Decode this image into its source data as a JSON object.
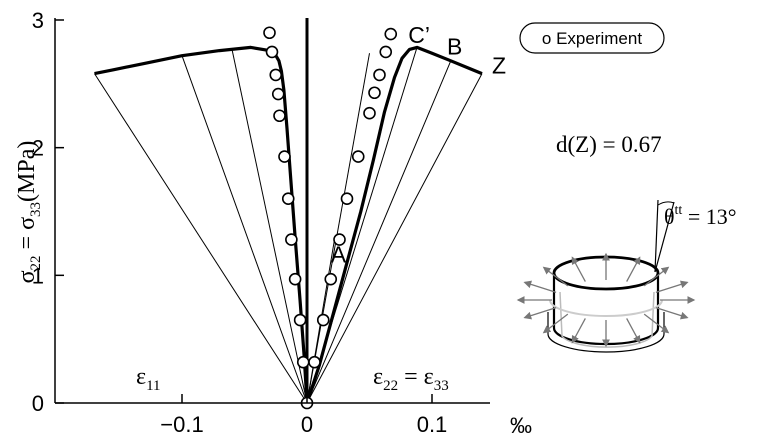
{
  "chart_data": {
    "type": "line",
    "xlim": [
      -0.19,
      0.145
    ],
    "ylim": [
      0,
      3
    ],
    "x_ticks": [
      {
        "v": -0.1,
        "label": "−0.1"
      },
      {
        "v": 0,
        "label": "0"
      },
      {
        "v": 0.1,
        "label": "0.1"
      }
    ],
    "y_ticks": [
      {
        "v": 0,
        "label": "0"
      },
      {
        "v": 1,
        "label": "1"
      },
      {
        "v": 2,
        "label": "2"
      },
      {
        "v": 3,
        "label": "3"
      }
    ],
    "x_unit": "‰",
    "y_label": {
      "sigma22": "σ",
      "sub22": "22",
      "eq": " = σ",
      "sub33": "33",
      "unit": "(MPa)"
    },
    "region_label_left": {
      "eps": "ε",
      "sub": "11"
    },
    "region_label_right": {
      "eps": "ε",
      "sub": "22",
      "eq": " = ε",
      "sub2": "33"
    },
    "series": [
      {
        "role": "model_eps11",
        "style": "thick",
        "points": [
          [
            0,
            0
          ],
          [
            -0.0022,
            0.35
          ],
          [
            -0.0055,
            0.8
          ],
          [
            -0.0095,
            1.3
          ],
          [
            -0.013,
            1.75
          ],
          [
            -0.016,
            2.15
          ],
          [
            -0.0185,
            2.45
          ],
          [
            -0.0205,
            2.6
          ],
          [
            -0.0225,
            2.68
          ],
          [
            -0.026,
            2.74
          ],
          [
            -0.03,
            2.76
          ],
          [
            -0.045,
            2.785
          ],
          [
            -0.07,
            2.76
          ],
          [
            -0.1,
            2.72
          ],
          [
            -0.13,
            2.66
          ],
          [
            -0.155,
            2.61
          ],
          [
            -0.17,
            2.58
          ]
        ]
      },
      {
        "role": "model_eps22",
        "style": "thick",
        "points": [
          [
            0,
            0
          ],
          [
            0.01,
            0.3
          ],
          [
            0.021,
            0.7
          ],
          [
            0.032,
            1.1
          ],
          [
            0.043,
            1.5
          ],
          [
            0.053,
            1.9
          ],
          [
            0.062,
            2.28
          ],
          [
            0.07,
            2.55
          ],
          [
            0.076,
            2.7
          ],
          [
            0.082,
            2.77
          ],
          [
            0.088,
            2.785
          ],
          [
            0.1,
            2.74
          ],
          [
            0.115,
            2.68
          ],
          [
            0.13,
            2.62
          ],
          [
            0.14,
            2.58
          ]
        ]
      },
      {
        "role": "unloading",
        "style": "thin",
        "points": [
          [
            0,
            0
          ],
          [
            -0.17,
            2.58
          ]
        ]
      },
      {
        "role": "unloading",
        "style": "thin",
        "points": [
          [
            0,
            0
          ],
          [
            -0.1,
            2.72
          ]
        ]
      },
      {
        "role": "unloading",
        "style": "thin",
        "points": [
          [
            0,
            0
          ],
          [
            -0.06,
            2.77
          ]
        ]
      },
      {
        "role": "unloading",
        "style": "thin",
        "points": [
          [
            0,
            0
          ],
          [
            0.14,
            2.58
          ]
        ]
      },
      {
        "role": "unloading",
        "style": "thin",
        "points": [
          [
            0,
            0
          ],
          [
            0.115,
            2.68
          ]
        ]
      },
      {
        "role": "unloading",
        "style": "thin",
        "points": [
          [
            0,
            0
          ],
          [
            0.088,
            2.785
          ]
        ]
      },
      {
        "role": "unloading",
        "style": "thin",
        "points": [
          [
            0,
            0
          ],
          [
            0.05,
            2.74
          ]
        ]
      },
      {
        "role": "unloading",
        "style": "thin",
        "points": [
          [
            0,
            0
          ],
          [
            0.022,
            1.28
          ]
        ]
      }
    ],
    "experiment": {
      "name": "Experiment",
      "points": [
        [
          0,
          0
        ],
        [
          -0.003,
          0.32
        ],
        [
          -0.0055,
          0.65
        ],
        [
          -0.0095,
          0.97
        ],
        [
          -0.0125,
          1.28
        ],
        [
          -0.015,
          1.6
        ],
        [
          -0.018,
          1.93
        ],
        [
          -0.022,
          2.25
        ],
        [
          -0.023,
          2.42
        ],
        [
          -0.025,
          2.57
        ],
        [
          -0.028,
          2.75
        ],
        [
          -0.03,
          2.9
        ],
        [
          0.006,
          0.32
        ],
        [
          0.013,
          0.65
        ],
        [
          0.019,
          0.97
        ],
        [
          0.026,
          1.28
        ],
        [
          0.032,
          1.6
        ],
        [
          0.041,
          1.93
        ],
        [
          0.05,
          2.27
        ],
        [
          0.054,
          2.43
        ],
        [
          0.058,
          2.57
        ],
        [
          0.063,
          2.75
        ],
        [
          0.067,
          2.89
        ]
      ]
    },
    "annotations": [
      {
        "text": "A",
        "x": 0.019,
        "y": 1.1
      },
      {
        "text": "C’",
        "x": 0.081,
        "y": 2.82
      },
      {
        "text": "B",
        "x": 0.112,
        "y": 2.73
      },
      {
        "text": "Z",
        "x": 0.148,
        "y": 2.58
      }
    ],
    "legend": {
      "label": "o Experiment",
      "position": "top-right"
    },
    "inset": {
      "d_text": "d(Z) = 0.67",
      "theta_text": {
        "base": "θ",
        "sup": "tt",
        "rest": " = 13°"
      }
    },
    "grid": false,
    "zero_line": true
  }
}
